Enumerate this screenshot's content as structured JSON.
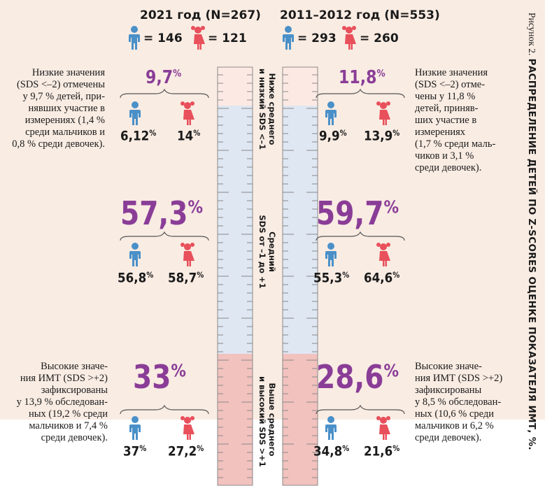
{
  "colors": {
    "boy": "#4a90c8",
    "girl": "#e8505b",
    "accent": "#8a3d97",
    "low_zone": "#fde9e4",
    "mid_zone": "#dfe7f3",
    "high_zone": "#f2c2be"
  },
  "figure": {
    "label": "Рисунок 2.",
    "title": "РАСПРЕДЕЛЕНИЕ ДЕТЕЙ ПО Z-SCORES ОЦЕНКЕ ПОКАЗАТЕЛЯ ИМТ, %."
  },
  "left": {
    "title": "2021 год (N=267)",
    "boys_count": "= 146",
    "girls_count": "= 121",
    "low": {
      "total": "9,7",
      "boys": "6,12",
      "girls": "14",
      "note": [
        "Низкие значения",
        "(SDS <–2) отмечены",
        "у 9,7 % детей, при-",
        "нявших участие в",
        "измерениях (1,4 %",
        "среди мальчиков и",
        "0,8 % среди девочек)."
      ]
    },
    "mid": {
      "total": "57,3",
      "boys": "56,8",
      "girls": "58,7"
    },
    "high": {
      "total": "33",
      "boys": "37",
      "girls": "27,2",
      "note": [
        "Высокие значе-",
        "ния ИМТ (SDS >+2)",
        "зафиксированы",
        "у 13,9 % обследован-",
        "ных (19,2 % среди",
        "мальчиков и 7,4 %",
        "среди девочек)."
      ]
    }
  },
  "right": {
    "title": "2011–2012 год (N=553)",
    "boys_count": "= 293",
    "girls_count": "= 260",
    "low": {
      "total": "11,8",
      "boys": "9,9",
      "girls": "13,9",
      "note": [
        "Низкие значения",
        "(SDS <–2) отме-",
        "чены у 11,8 %",
        "детей, приняв-",
        "ших участие в",
        "измерениях",
        "(1,7 % среди маль-",
        "чиков и 3,1 %",
        "среди девочек)."
      ]
    },
    "mid": {
      "total": "59,7",
      "boys": "55,3",
      "girls": "64,6"
    },
    "high": {
      "total": "28,6",
      "boys": "34,8",
      "girls": "21,6",
      "note": [
        "Высокие значе-",
        "ния ИМТ (SDS >+2)",
        "зафиксированы",
        "у 8,5 % обследован-",
        "ных (10,6 % среди",
        "мальчиков и 6,2 %",
        "среди девочек)."
      ]
    }
  },
  "zones": {
    "low": [
      "Ниже среднего",
      "и низкий SDS <–1"
    ],
    "mid": [
      "Средний",
      "SDS от –1 до +1"
    ],
    "high": [
      "Выше среднего",
      "и высокий SDS >+1"
    ]
  },
  "pct_sign": "%"
}
